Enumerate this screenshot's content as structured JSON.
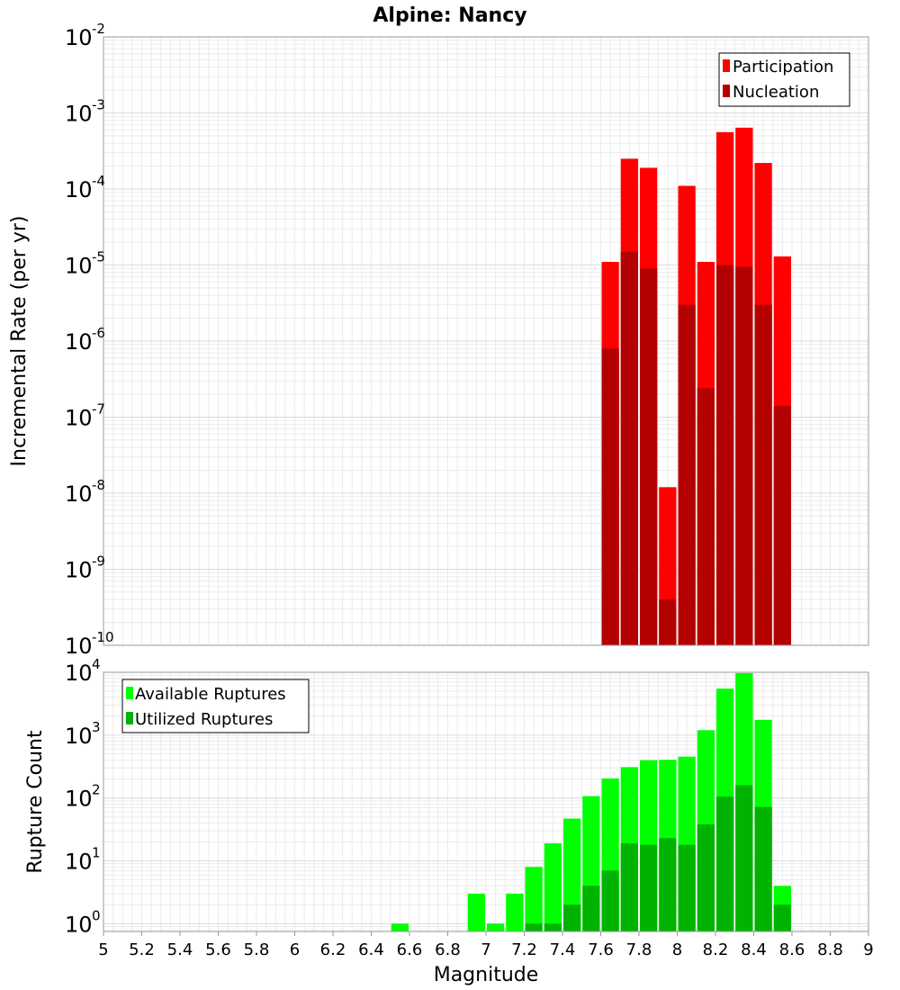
{
  "chart_data": [
    {
      "type": "bar",
      "title": "Alpine: Nancy",
      "xlabel": "",
      "ylabel": "Incremental Rate (per yr)",
      "yscale": "log",
      "ylim": [
        1e-10,
        0.01
      ],
      "xlim": [
        5,
        9
      ],
      "grid": true,
      "legend_position": "top-right",
      "y_ticks": [
        {
          "base": "10",
          "exp": "-10",
          "value": 1e-10
        },
        {
          "base": "10",
          "exp": "-9",
          "value": 1e-09
        },
        {
          "base": "10",
          "exp": "-8",
          "value": 1e-08
        },
        {
          "base": "10",
          "exp": "-7",
          "value": 1e-07
        },
        {
          "base": "10",
          "exp": "-6",
          "value": 1e-06
        },
        {
          "base": "10",
          "exp": "-5",
          "value": 1e-05
        },
        {
          "base": "10",
          "exp": "-4",
          "value": 0.0001
        },
        {
          "base": "10",
          "exp": "-3",
          "value": 0.001
        },
        {
          "base": "10",
          "exp": "-2",
          "value": 0.01
        }
      ],
      "x": [
        7.65,
        7.75,
        7.85,
        7.95,
        8.05,
        8.15,
        8.25,
        8.35,
        8.45,
        8.55
      ],
      "series": [
        {
          "name": "Participation",
          "color": "#ff0000",
          "values": [
            1.1e-05,
            0.00025,
            0.00019,
            1.2e-08,
            0.00011,
            1.1e-05,
            0.00056,
            0.00064,
            0.00022,
            1.3e-05
          ]
        },
        {
          "name": "Nucleation",
          "color": "#b30000",
          "values": [
            8e-07,
            1.5e-05,
            9e-06,
            4e-10,
            3e-06,
            2.4e-07,
            1e-05,
            9.5e-06,
            3e-06,
            1.4e-07
          ]
        }
      ]
    },
    {
      "type": "bar",
      "title": "",
      "xlabel": "Magnitude",
      "ylabel": "Rupture Count",
      "yscale": "log",
      "ylim": [
        0.75,
        10000
      ],
      "xlim": [
        5,
        9
      ],
      "grid": true,
      "legend_position": "top-left",
      "x_ticks": [
        "5",
        "5.2",
        "5.4",
        "5.6",
        "5.8",
        "6",
        "6.2",
        "6.4",
        "6.6",
        "6.8",
        "7",
        "7.2",
        "7.4",
        "7.6",
        "7.8",
        "8",
        "8.2",
        "8.4",
        "8.6",
        "8.8",
        "9"
      ],
      "y_ticks": [
        {
          "base": "10",
          "exp": "0",
          "value": 1
        },
        {
          "base": "10",
          "exp": "1",
          "value": 10
        },
        {
          "base": "10",
          "exp": "2",
          "value": 100
        },
        {
          "base": "10",
          "exp": "3",
          "value": 1000
        },
        {
          "base": "10",
          "exp": "4",
          "value": 10000
        }
      ],
      "x": [
        6.55,
        6.95,
        7.05,
        7.15,
        7.25,
        7.35,
        7.45,
        7.55,
        7.65,
        7.75,
        7.85,
        7.95,
        8.05,
        8.15,
        8.25,
        8.35,
        8.45,
        8.55
      ],
      "series": [
        {
          "name": "Available Ruptures",
          "color": "#00ff00",
          "values": [
            1,
            3,
            1,
            3,
            8,
            19,
            47,
            107,
            205,
            310,
            400,
            405,
            455,
            1200,
            5500,
            9700,
            1750,
            4
          ]
        },
        {
          "name": "Utilized Ruptures",
          "color": "#00b300",
          "values": [
            0,
            0,
            0,
            0,
            1,
            1,
            2,
            4,
            7,
            19,
            18,
            23,
            18,
            38,
            105,
            160,
            72,
            2
          ]
        }
      ]
    }
  ]
}
